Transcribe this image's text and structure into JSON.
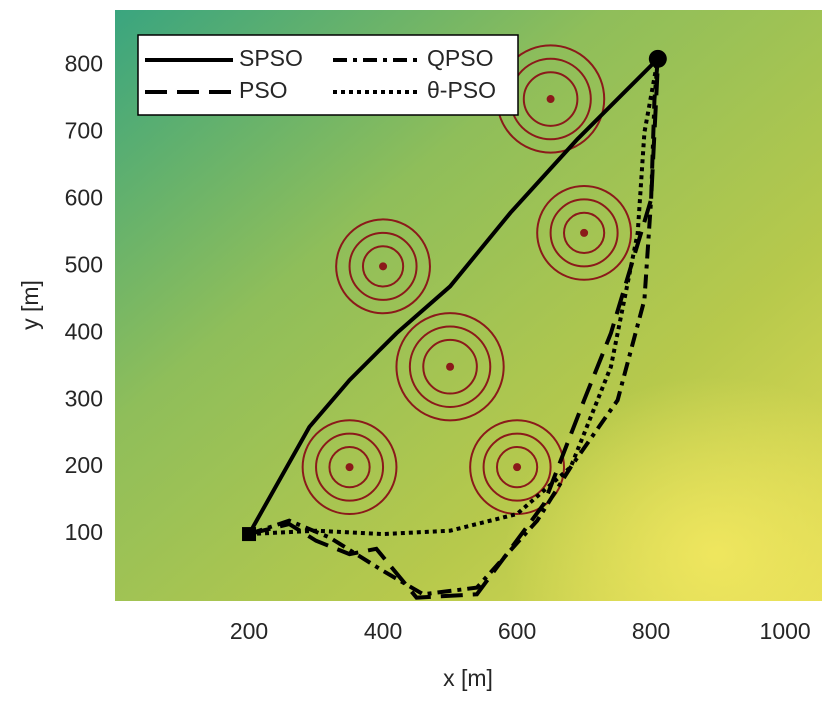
{
  "chart_data": {
    "type": "line",
    "xlabel": "x [m]",
    "ylabel": "y [m]",
    "xlim": [
      0,
      1055
    ],
    "ylim": [
      0,
      883
    ],
    "xticks": [
      200,
      400,
      600,
      800,
      1000
    ],
    "yticks": [
      100,
      200,
      300,
      400,
      500,
      600,
      700,
      800
    ],
    "series": [
      {
        "name": "SPSO",
        "color": "#000000",
        "dash": "solid",
        "x": [
          200,
          290,
          350,
          420,
          500,
          590,
          690,
          760,
          810
        ],
        "y": [
          100,
          260,
          330,
          400,
          470,
          580,
          690,
          760,
          810
        ]
      },
      {
        "name": "PSO",
        "color": "#000000",
        "dash": "dashed",
        "x": [
          200,
          260,
          300,
          350,
          390,
          450,
          540,
          640,
          700,
          740,
          800,
          810,
          810
        ],
        "y": [
          100,
          115,
          90,
          70,
          78,
          5,
          10,
          145,
          300,
          400,
          600,
          800,
          810
        ]
      },
      {
        "name": "QPSO",
        "color": "#000000",
        "dash": "dashdot",
        "x": [
          200,
          260,
          320,
          400,
          460,
          540,
          630,
          680,
          750,
          790,
          800,
          805,
          810
        ],
        "y": [
          100,
          120,
          95,
          45,
          10,
          20,
          120,
          200,
          300,
          450,
          600,
          750,
          810
        ]
      },
      {
        "name": "θ-PSO",
        "color": "#000000",
        "dash": "dotted",
        "x": [
          200,
          300,
          400,
          500,
          600,
          680,
          740,
          780,
          790,
          810
        ],
        "y": [
          100,
          105,
          100,
          105,
          130,
          200,
          350,
          550,
          700,
          810
        ]
      }
    ],
    "obstacles": [
      {
        "x": 350,
        "y": 200,
        "radii": [
          70,
          50,
          30
        ]
      },
      {
        "x": 400,
        "y": 500,
        "radii": [
          70,
          50,
          30
        ]
      },
      {
        "x": 500,
        "y": 350,
        "radii": [
          80,
          60,
          40
        ]
      },
      {
        "x": 600,
        "y": 200,
        "radii": [
          70,
          50,
          30
        ]
      },
      {
        "x": 650,
        "y": 750,
        "radii": [
          80,
          60,
          40
        ]
      },
      {
        "x": 700,
        "y": 550,
        "radii": [
          70,
          50,
          30
        ]
      }
    ],
    "obstacle_color": "#8b1a1a",
    "start": {
      "x": 200,
      "y": 100
    },
    "goal": {
      "x": 810,
      "y": 810
    }
  }
}
